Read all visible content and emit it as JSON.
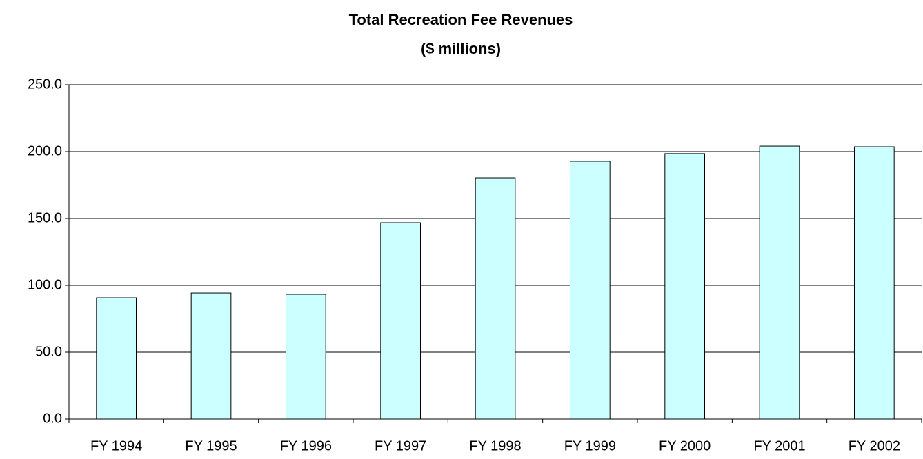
{
  "chart_data": {
    "type": "bar",
    "title": "Total Recreation Fee Revenues",
    "subtitle": "($ millions)",
    "categories": [
      "FY 1994",
      "FY 1995",
      "FY 1996",
      "FY 1997",
      "FY 1998",
      "FY 1999",
      "FY 2000",
      "FY 2001",
      "FY 2002"
    ],
    "values": [
      90.7,
      94.3,
      93.3,
      146.9,
      180.4,
      192.8,
      198.5,
      204.1,
      203.6
    ],
    "color": "#ccffff",
    "ylim": [
      0,
      250
    ],
    "yticks": [
      {
        "value": 0,
        "label": "0.0"
      },
      {
        "value": 50,
        "label": "50.0"
      },
      {
        "value": 100,
        "label": "100.0"
      },
      {
        "value": 150,
        "label": "150.0"
      },
      {
        "value": 200,
        "label": "200.0"
      },
      {
        "value": 250,
        "label": "250.0"
      }
    ],
    "grid": true
  }
}
